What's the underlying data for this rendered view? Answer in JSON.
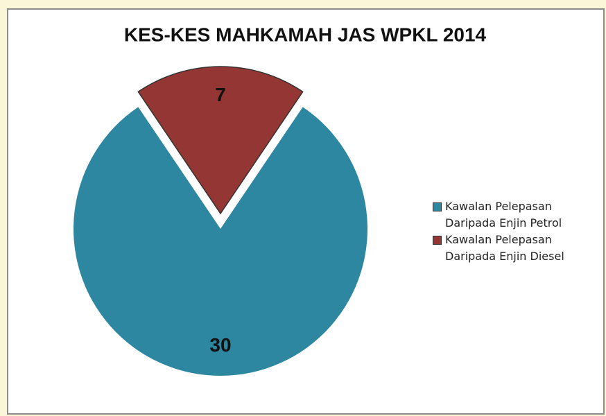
{
  "chart_data": {
    "type": "pie",
    "title": "KES-KES MAHKAMAH JAS WPKL 2014",
    "categories": [
      "Kawalan Pelepasan Daripada Enjin Petrol",
      "Kawalan Pelepasan Daripada Enjin Diesel"
    ],
    "values": [
      30,
      7
    ],
    "colors": [
      "#2e87a0",
      "#943634"
    ]
  }
}
